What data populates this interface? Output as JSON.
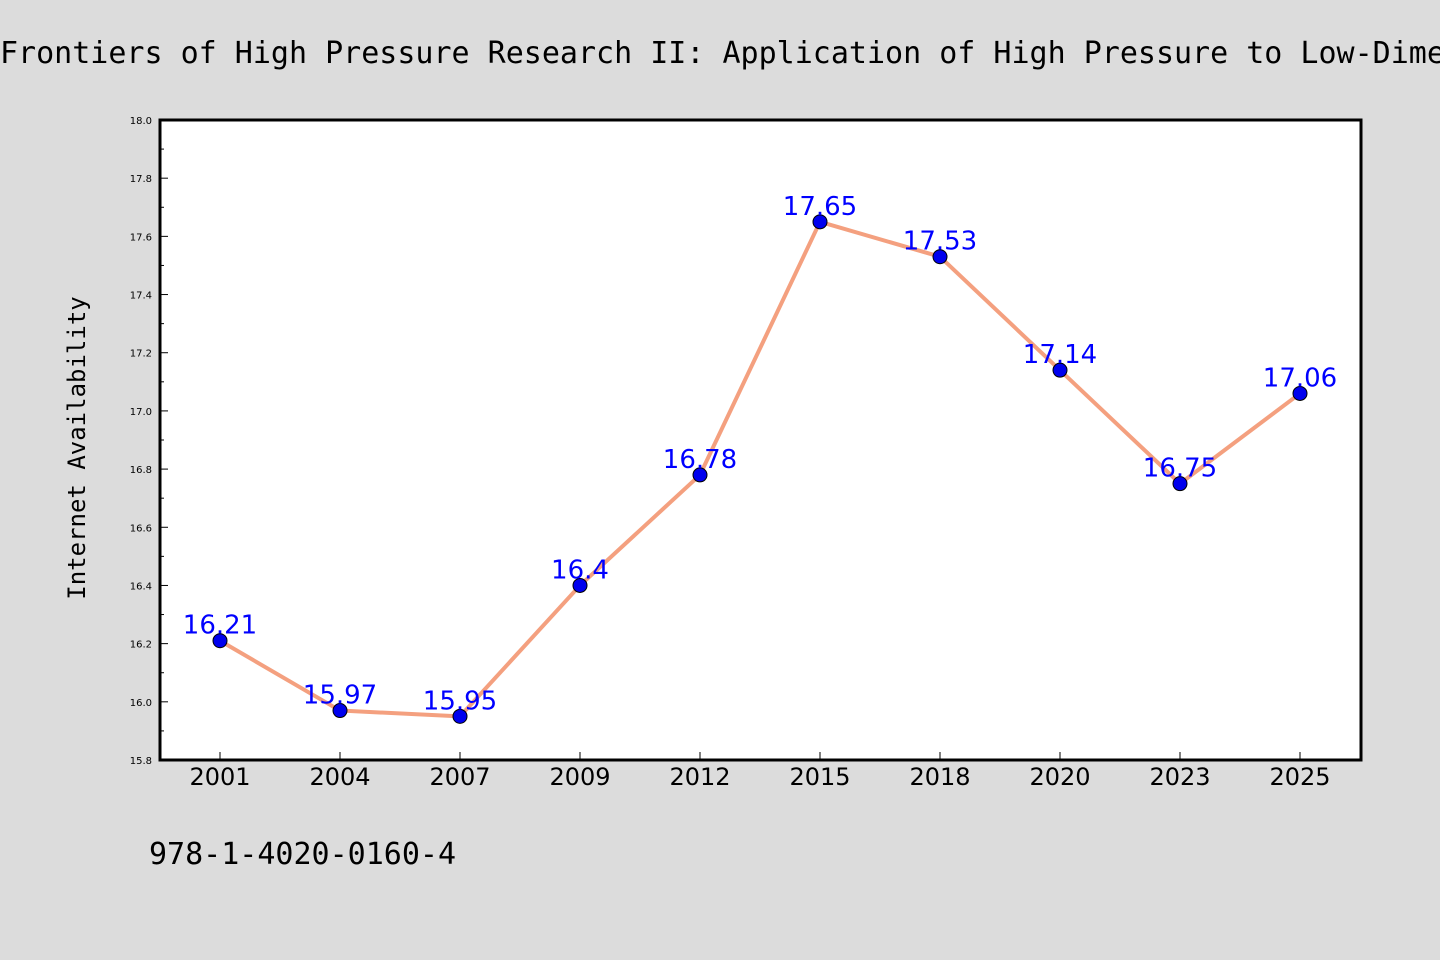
{
  "chart_data": {
    "type": "line",
    "title": "Frontiers of High Pressure Research II: Application of High Pressure to Low-Dimensional Novel Electronic Materials",
    "xlabel": "",
    "ylabel": "Internet Availability",
    "categories": [
      "2001",
      "2004",
      "2007",
      "2009",
      "2012",
      "2015",
      "2018",
      "2020",
      "2023",
      "2025"
    ],
    "series": [
      {
        "values": [
          16.21,
          15.97,
          15.95,
          16.4,
          16.78,
          17.65,
          17.53,
          17.14,
          16.75,
          17.06
        ],
        "value_labels": [
          "16.21",
          "15.97",
          "15.95",
          "16.4",
          "16.78",
          "17.65",
          "17.53",
          "17.14",
          "16.75",
          "17.06"
        ]
      }
    ],
    "ylim": [
      15.8,
      18.0
    ],
    "yticks": [
      "15.8",
      "16.0",
      "16.2",
      "16.4",
      "16.6",
      "16.8",
      "17.0",
      "17.2",
      "17.4",
      "17.6",
      "17.8",
      "18.0"
    ],
    "grid": false,
    "legend": "none"
  },
  "footer": {
    "isbn": "978-1-4020-0160-4"
  },
  "colors": {
    "background": "#dcdcdc",
    "plot_background": "#ffffff",
    "line": "#f4a07f",
    "marker": "#0000ee",
    "data_label": "#0000ff",
    "axes": "#000000"
  }
}
